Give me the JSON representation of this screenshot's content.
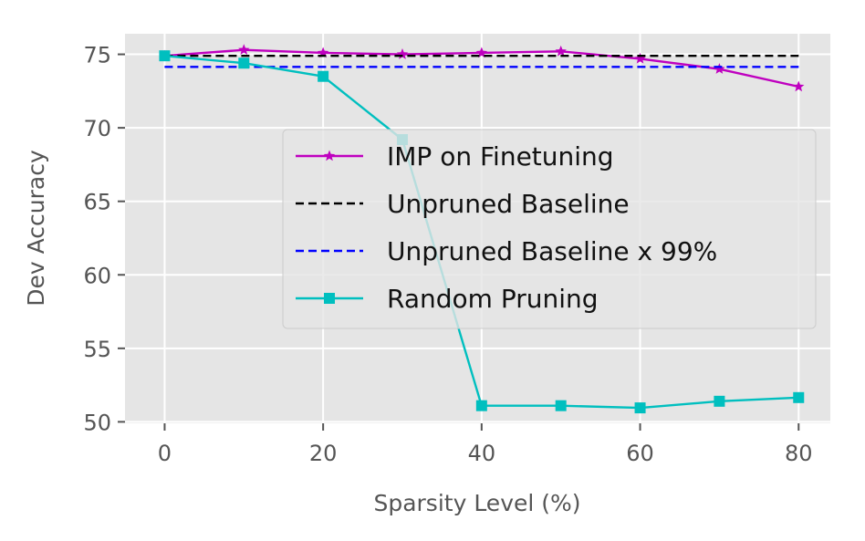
{
  "chart_data": {
    "type": "line",
    "xlabel": "Sparsity Level (%)",
    "ylabel": "Dev Accuracy",
    "xlim": [
      -5,
      84
    ],
    "ylim": [
      49.9,
      76.4
    ],
    "xticks": [
      0,
      20,
      40,
      60,
      80
    ],
    "yticks": [
      50,
      55,
      60,
      65,
      70,
      75
    ],
    "grid": true,
    "legend_position": "center-right",
    "series": [
      {
        "name": "IMP on Finetuning",
        "color": "#bf00bf",
        "style": "solid",
        "marker": "star",
        "x": [
          0,
          10,
          20,
          30,
          40,
          50,
          60,
          70,
          80
        ],
        "y": [
          74.9,
          75.3,
          75.1,
          75.0,
          75.1,
          75.2,
          74.7,
          74.0,
          72.8
        ]
      },
      {
        "name": "Unpruned Baseline",
        "color": "#000000",
        "style": "dashed",
        "marker": "none",
        "x": [
          0,
          80
        ],
        "y": [
          74.9,
          74.9
        ]
      },
      {
        "name": "Unpruned Baseline x 99%",
        "color": "#0000ff",
        "style": "dashed",
        "marker": "none",
        "x": [
          0,
          80
        ],
        "y": [
          74.15,
          74.15
        ]
      },
      {
        "name": "Random Pruning",
        "color": "#00bfbf",
        "style": "solid",
        "marker": "square",
        "x": [
          0,
          10,
          20,
          30,
          40,
          50,
          60,
          70,
          80
        ],
        "y": [
          74.9,
          74.4,
          73.5,
          69.2,
          51.1,
          51.1,
          50.95,
          51.4,
          51.65
        ]
      }
    ]
  }
}
